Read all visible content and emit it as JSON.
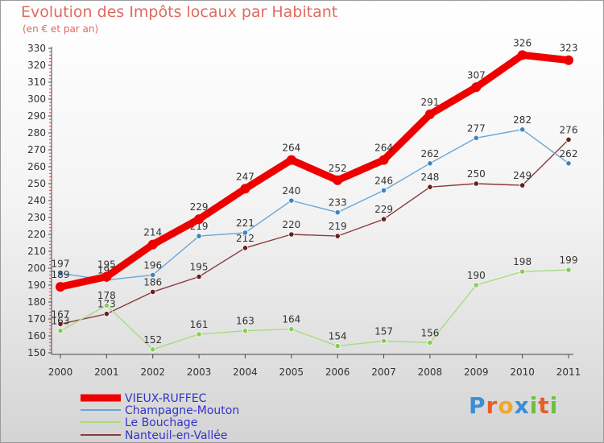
{
  "title": "Evolution des Impôts locaux par Habitant",
  "subtitle": "(en € et par an)",
  "logo": {
    "text": "Proxiti",
    "colors": [
      "#3b8ed6",
      "#e85d2a",
      "#f2a72a",
      "#3b8ed6",
      "#6cbf3f",
      "#e85d2a",
      "#6cbf3f"
    ]
  },
  "chart_data": {
    "type": "line",
    "x": [
      "2000",
      "2001",
      "2002",
      "2003",
      "2004",
      "2005",
      "2006",
      "2007",
      "2008",
      "2009",
      "2010",
      "2011"
    ],
    "yticks": [
      "150",
      "160",
      "170",
      "180",
      "190",
      "200",
      "210",
      "220",
      "230",
      "240",
      "250",
      "260",
      "270",
      "280",
      "290",
      "300",
      "310",
      "320",
      "330"
    ],
    "ylim": [
      150,
      330
    ],
    "grid": false,
    "legend_position": "bottom-left",
    "series": [
      {
        "name": "VIEUX-RUFFEC",
        "color": "#ee0000",
        "marker": "#ee0000",
        "values": [
          189,
          195,
          214,
          229,
          247,
          264,
          252,
          264,
          291,
          307,
          326,
          323
        ],
        "labels": [
          "189",
          "195",
          "214",
          "229",
          "247",
          "264",
          "252",
          "264",
          "291",
          "307",
          "326",
          "323"
        ]
      },
      {
        "name": "Champagne-Mouton",
        "color": "#6aa6d6",
        "marker": "#3d84c6",
        "values": [
          197,
          193,
          196,
          219,
          221,
          240,
          233,
          246,
          262,
          277,
          282,
          262
        ],
        "labels": [
          "197",
          "193",
          "196",
          "219",
          "221",
          "240",
          "233",
          "246",
          "262",
          "277",
          "282",
          "262"
        ]
      },
      {
        "name": "Le Bouchage",
        "color": "#a6dc80",
        "marker": "#88cc55",
        "values": [
          163,
          178,
          152,
          161,
          163,
          164,
          154,
          157,
          156,
          190,
          198,
          199
        ],
        "labels": [
          "163",
          "178",
          "152",
          "161",
          "163",
          "164",
          "154",
          "157",
          "156",
          "190",
          "198",
          "199"
        ]
      },
      {
        "name": "Nanteuil-en-Vallée",
        "color": "#8a3a3a",
        "marker": "#6a1e1e",
        "values": [
          167,
          173,
          186,
          195,
          212,
          220,
          219,
          229,
          248,
          250,
          249,
          276
        ],
        "labels": [
          "167",
          "173",
          "186",
          "195",
          "212",
          "220",
          "219",
          "229",
          "248",
          "250",
          "249",
          "276"
        ]
      }
    ]
  }
}
